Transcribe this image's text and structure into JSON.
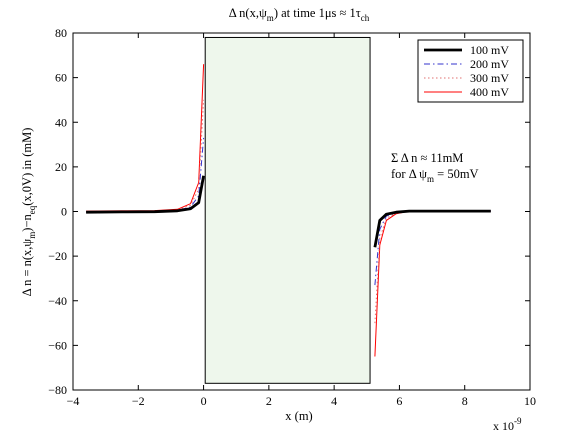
{
  "chart_data": {
    "type": "line",
    "title": "Δ n(x,ψm) at time 1μs ≈ 1τch",
    "title_parts": {
      "a": "Δ n(x,ψ",
      "b": "m",
      "c": ") at time 1μs ≈ 1τ",
      "d": "ch"
    },
    "xlabel": "x (m)",
    "ylabel": "Δ n = n(x,ψm)−neq(x,0V) in (mM)",
    "ylabel_parts": {
      "a": "Δ n = n(x,ψ",
      "b": "m",
      "c": ")−n",
      "d": "eq",
      "e": "(x,0V) in (mM)"
    },
    "x_multiplier": "x 10",
    "x_multiplier_exp": "-9",
    "xlim": [
      -4,
      10
    ],
    "ylim": [
      -80,
      80
    ],
    "xticks": [
      -4,
      -2,
      0,
      2,
      4,
      6,
      8,
      10
    ],
    "yticks": [
      -80,
      -60,
      -40,
      -20,
      0,
      20,
      40,
      60,
      80
    ],
    "xtick_labels": [
      "−4",
      "−2",
      "0",
      "2",
      "4",
      "6",
      "8",
      "10"
    ],
    "ytick_labels": [
      "−80",
      "−60",
      "−40",
      "−20",
      "0",
      "20",
      "40",
      "60",
      "80"
    ],
    "legend_position": "top-right",
    "annotation": {
      "line1": "Σ Δ n ≈ 11mM",
      "line2_a": "for Δ ψ",
      "line2_b": "m",
      "line2_c": " = 50mV"
    },
    "membrane_region": {
      "x0": 0.05,
      "x1": 5.1,
      "y0": -77,
      "y1": 78,
      "color": "#eef7ec"
    },
    "series": [
      {
        "name": "100 mV",
        "color": "#000000",
        "width": 2.8,
        "dash": "",
        "left": {
          "x": [
            -3.6,
            -2.5,
            -1.5,
            -0.8,
            -0.4,
            -0.15,
            0.0
          ],
          "y": [
            -0.3,
            -0.2,
            -0.1,
            0.3,
            1.2,
            4,
            16
          ]
        },
        "right": {
          "x": [
            5.25,
            5.4,
            5.6,
            5.9,
            6.3,
            7.5,
            8.8
          ],
          "y": [
            -16,
            -4,
            -1.2,
            -0.3,
            0.2,
            0.2,
            0.2
          ]
        }
      },
      {
        "name": "200 mV",
        "color": "#3333cc",
        "width": 1,
        "dash": "6,3,1.5,3",
        "left": {
          "x": [
            -3.6,
            -2.5,
            -1.5,
            -0.8,
            -0.4,
            -0.15,
            0.0
          ],
          "y": [
            -0.3,
            -0.2,
            0.0,
            0.5,
            2,
            7,
            33
          ]
        },
        "right": {
          "x": [
            5.25,
            5.4,
            5.6,
            5.9,
            6.3,
            7.5,
            8.8
          ],
          "y": [
            -33,
            -8,
            -2,
            -0.5,
            0.2,
            0.2,
            0.2
          ]
        }
      },
      {
        "name": "300 mV",
        "color": "#e07070",
        "width": 1,
        "dash": "1.5,2.5",
        "left": {
          "x": [
            -3.6,
            -2.5,
            -1.5,
            -0.8,
            -0.4,
            -0.15,
            0.0
          ],
          "y": [
            -0.2,
            -0.1,
            0.1,
            0.7,
            2.8,
            10,
            50
          ]
        },
        "right": {
          "x": [
            5.25,
            5.4,
            5.6,
            5.9,
            6.3,
            7.5,
            8.8
          ],
          "y": [
            -50,
            -12,
            -3,
            -0.7,
            0.2,
            0.2,
            0.2
          ]
        }
      },
      {
        "name": "400 mV",
        "color": "#ff0000",
        "width": 1,
        "dash": "",
        "left": {
          "x": [
            -3.6,
            -2.5,
            -1.5,
            -0.8,
            -0.4,
            -0.15,
            0.0
          ],
          "y": [
            0.2,
            0.3,
            0.4,
            1.0,
            3.5,
            13,
            66
          ]
        },
        "right": {
          "x": [
            5.25,
            5.4,
            5.6,
            5.9,
            6.3,
            7.5,
            8.8
          ],
          "y": [
            -65,
            -15,
            -4,
            -1.0,
            0.2,
            0.2,
            0.2
          ]
        }
      }
    ]
  }
}
